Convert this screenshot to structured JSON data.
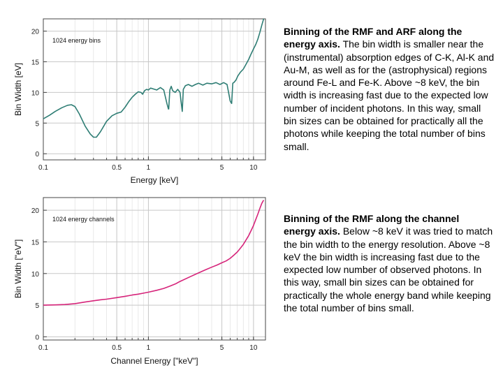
{
  "chart_data": [
    {
      "type": "line",
      "inset_label": "1024 energy bins",
      "xlabel": "Energy  [keV]",
      "ylabel": "Bin Width  [eV]",
      "xscale": "log",
      "xlim": [
        0.1,
        13
      ],
      "ylim": [
        -1,
        22
      ],
      "xticks": [
        0.1,
        0.5,
        1,
        5,
        10
      ],
      "xtick_labels": [
        "0.1",
        "0.5",
        "1",
        "5",
        "10"
      ],
      "yticks": [
        0,
        5,
        10,
        15,
        20
      ],
      "ytick_labels": [
        "0",
        "5",
        "10",
        "15",
        "20"
      ],
      "grid": true,
      "color": "#2e7d74",
      "series": [
        {
          "x": [
            0.1,
            0.115,
            0.13,
            0.15,
            0.17,
            0.185,
            0.2,
            0.22,
            0.25,
            0.28,
            0.3,
            0.32,
            0.35,
            0.4,
            0.45,
            0.5,
            0.55,
            0.6,
            0.65,
            0.7,
            0.75,
            0.8,
            0.85,
            0.88,
            0.92,
            0.96,
            1.0,
            1.05,
            1.1,
            1.2,
            1.3,
            1.4,
            1.5,
            1.55,
            1.56,
            1.6,
            1.65,
            1.7,
            1.8,
            1.9,
            2.0,
            2.05,
            2.1,
            2.15,
            2.25,
            2.4,
            2.6,
            2.8,
            3.0,
            3.3,
            3.6,
            4.0,
            4.4,
            4.8,
            5.2,
            5.6,
            6.0,
            6.2,
            6.35,
            6.5,
            6.8,
            7.1,
            7.5,
            8.0,
            8.5,
            9.0,
            9.5,
            10.0,
            10.5,
            11.0,
            11.5,
            12.0,
            12.5
          ],
          "y": [
            5.7,
            6.3,
            6.9,
            7.5,
            7.9,
            8.0,
            7.7,
            6.5,
            4.5,
            3.2,
            2.7,
            2.7,
            3.6,
            5.3,
            6.2,
            6.6,
            6.8,
            7.6,
            8.5,
            9.2,
            9.7,
            10.1,
            10.0,
            9.7,
            10.3,
            10.5,
            10.4,
            10.7,
            10.6,
            10.4,
            10.8,
            10.4,
            8.2,
            7.3,
            7.3,
            10.4,
            11.0,
            10.3,
            10.0,
            10.5,
            10.0,
            8.4,
            6.9,
            10.5,
            11.1,
            11.3,
            11.0,
            11.3,
            11.5,
            11.2,
            11.5,
            11.4,
            11.6,
            11.3,
            11.6,
            11.3,
            8.6,
            8.2,
            11.5,
            11.6,
            12.0,
            12.7,
            13.3,
            13.8,
            14.6,
            15.4,
            16.3,
            17.1,
            17.8,
            18.7,
            19.8,
            21.0,
            22.0
          ]
        }
      ]
    },
    {
      "type": "line",
      "inset_label": "1024 energy channels",
      "xlabel": "Channel Energy  [\"keV\"]",
      "ylabel": "Bin Width  [\"eV\"]",
      "xscale": "log",
      "xlim": [
        0.1,
        13
      ],
      "ylim": [
        -0.5,
        22
      ],
      "xticks": [
        0.1,
        0.5,
        1,
        5,
        10
      ],
      "xtick_labels": [
        "0.1",
        "0.5",
        "1",
        "5",
        "10"
      ],
      "yticks": [
        0,
        5,
        10,
        15,
        20
      ],
      "ytick_labels": [
        "0",
        "5",
        "10",
        "15",
        "20"
      ],
      "grid": true,
      "color": "#d6247a",
      "series": [
        {
          "x": [
            0.1,
            0.13,
            0.16,
            0.2,
            0.25,
            0.3,
            0.35,
            0.4,
            0.5,
            0.6,
            0.7,
            0.8,
            0.9,
            1.0,
            1.2,
            1.4,
            1.6,
            1.8,
            2.0,
            2.5,
            3.0,
            3.5,
            4.0,
            4.5,
            5.0,
            5.5,
            6.0,
            6.5,
            7.0,
            7.5,
            8.0,
            8.5,
            9.0,
            9.5,
            10.0,
            10.5,
            11.0,
            11.5,
            12.0,
            12.5
          ],
          "y": [
            5.0,
            5.05,
            5.1,
            5.25,
            5.5,
            5.7,
            5.85,
            5.95,
            6.2,
            6.4,
            6.6,
            6.75,
            6.9,
            7.05,
            7.35,
            7.65,
            8.0,
            8.35,
            8.75,
            9.5,
            10.1,
            10.6,
            11.0,
            11.35,
            11.7,
            12.0,
            12.4,
            12.9,
            13.4,
            14.0,
            14.6,
            15.3,
            16.0,
            16.8,
            17.6,
            18.5,
            19.4,
            20.3,
            21.1,
            21.6
          ]
        }
      ]
    }
  ],
  "text": {
    "arf_bold": "Binning of the RMF and ARF along the energy axis.",
    "arf_body": " The bin width is smaller near the (instrumental) absorption edges of C-K, Al-K and Au-M, as well as for the (astrophysical) regions around Fe-L and Fe-K. Above ~8 keV, the bin width is increasing fast due to the expected low number of incident photons. In this way, small bin sizes can be obtained for practically all the photons while keeping the total number of bins small.",
    "rmf_bold": "Binning of the RMF along the channel energy axis.",
    "rmf_body": " Below ~8 keV it was tried to match the bin width to the energy resolution. Above ~8 keV the bin width is increasing fast due to the expected low number of observed photons. In this way, small bin sizes can be obtained for practically the whole energy band while keeping the total number of bins small."
  }
}
